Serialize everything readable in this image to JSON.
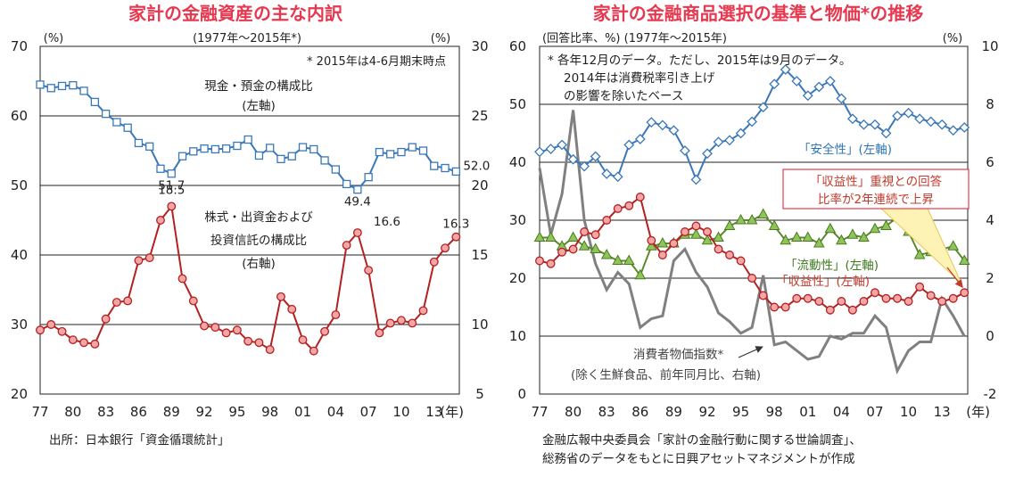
{
  "chart_data": [
    {
      "type": "line",
      "title": "家計の金融資産の主な内訳",
      "subtitle": "(1977年～2015年*)",
      "left_unit": "(%)",
      "right_unit": "(%)",
      "note": "* 2015年は4-6月期末時点",
      "x_unit": "(年)",
      "x_ticks": [
        "77",
        "80",
        "83",
        "86",
        "89",
        "92",
        "95",
        "98",
        "01",
        "04",
        "07",
        "10",
        "13"
      ],
      "y_left": {
        "min": 20,
        "max": 70,
        "ticks": [
          "20",
          "30",
          "40",
          "50",
          "60",
          "70"
        ]
      },
      "y_right": {
        "min": 5,
        "max": 30,
        "ticks": [
          "5",
          "10",
          "15",
          "20",
          "25",
          "30"
        ]
      },
      "x_range": [
        1977,
        2015.3
      ],
      "series": [
        {
          "name": "現金・預金の構成比",
          "axis_label": "(左軸)",
          "axis": "left",
          "color": "#3b78b8",
          "marker": "square",
          "x": [
            1977,
            1978,
            1979,
            1980,
            1981,
            1982,
            1983,
            1984,
            1985,
            1986,
            1987,
            1988,
            1989,
            1990,
            1991,
            1992,
            1993,
            1994,
            1995,
            1996,
            1997,
            1998,
            1999,
            2000,
            2001,
            2002,
            2003,
            2004,
            2005,
            2006,
            2007,
            2008,
            2009,
            2010,
            2011,
            2012,
            2013,
            2014,
            2015
          ],
          "values": [
            64.5,
            64.0,
            64.3,
            64.4,
            63.6,
            62.0,
            60.3,
            59.1,
            58.3,
            56.1,
            55.6,
            52.4,
            51.7,
            54.2,
            54.9,
            55.3,
            55.2,
            55.3,
            55.7,
            56.6,
            54.3,
            55.4,
            53.8,
            54.2,
            55.5,
            55.2,
            53.6,
            52.3,
            50.2,
            49.4,
            51.2,
            54.8,
            54.5,
            54.8,
            55.5,
            55.0,
            52.8,
            52.5,
            52.0
          ]
        },
        {
          "name": "株式・出資金および投資信託の構成比",
          "axis_label": "(右軸)",
          "axis": "right",
          "color": "#b32121",
          "marker": "circle",
          "x": [
            1977,
            1978,
            1979,
            1980,
            1981,
            1982,
            1983,
            1984,
            1985,
            1986,
            1987,
            1988,
            1989,
            1990,
            1991,
            1992,
            1993,
            1994,
            1995,
            1996,
            1997,
            1998,
            1999,
            2000,
            2001,
            2002,
            2003,
            2004,
            2005,
            2006,
            2007,
            2008,
            2009,
            2010,
            2011,
            2012,
            2013,
            2014,
            2015
          ],
          "values": [
            9.6,
            10.0,
            9.5,
            8.9,
            8.7,
            8.6,
            10.4,
            11.6,
            11.7,
            14.6,
            14.8,
            17.5,
            18.5,
            13.3,
            11.7,
            9.9,
            9.8,
            9.4,
            9.6,
            8.8,
            8.7,
            8.2,
            12.0,
            11.1,
            8.9,
            8.1,
            9.5,
            10.7,
            15.7,
            16.6,
            13.9,
            9.4,
            10.1,
            10.3,
            10.1,
            11.0,
            14.5,
            15.5,
            16.3
          ]
        }
      ],
      "labels": [
        {
          "text": "51.7",
          "x": 1989,
          "series": 0
        },
        {
          "text": "49.4",
          "x": 2006,
          "series": 0
        },
        {
          "text": "52.0",
          "x": 2015,
          "series": 0
        },
        {
          "text": "18.5",
          "x": 1989,
          "series": 1
        },
        {
          "text": "16.6",
          "x": 2006,
          "series": 1
        },
        {
          "text": "16.3",
          "x": 2015,
          "series": 1
        }
      ],
      "source": "出所：日本銀行「資金循環統計」"
    },
    {
      "type": "line",
      "title": "家計の金融商品選択の基準と物価*の推移",
      "subtitle": "(回答比率、%) (1977年～2015年)",
      "right_unit": "(%)",
      "note_lines": [
        "* 各年12月のデータ。ただし、2015年は9月のデータ。",
        "2014年は消費税率引き上げ",
        "の影響を除いたベース"
      ],
      "x_unit": "(年)",
      "x_ticks": [
        "77",
        "80",
        "83",
        "86",
        "89",
        "92",
        "95",
        "98",
        "01",
        "04",
        "07",
        "10",
        "13"
      ],
      "y_left": {
        "min": 0,
        "max": 60,
        "ticks": [
          "0",
          "10",
          "20",
          "30",
          "40",
          "50",
          "60"
        ]
      },
      "y_right": {
        "min": -2,
        "max": 10,
        "ticks": [
          "-2",
          "0",
          "2",
          "4",
          "6",
          "8",
          "10"
        ]
      },
      "x_range": [
        1977,
        2015.3
      ],
      "callout_lines": [
        "「収益性」重視との回答",
        "比率が2年連続で上昇"
      ],
      "series": [
        {
          "name": "「安全性」(左軸)",
          "axis": "left",
          "color": "#3b78b8",
          "marker": "diamond",
          "x": [
            1977,
            1978,
            1979,
            1980,
            1981,
            1982,
            1983,
            1984,
            1985,
            1986,
            1987,
            1988,
            1989,
            1990,
            1991,
            1992,
            1993,
            1994,
            1995,
            1996,
            1997,
            1998,
            1999,
            2000,
            2001,
            2002,
            2003,
            2004,
            2005,
            2006,
            2007,
            2008,
            2009,
            2010,
            2011,
            2012,
            2013,
            2014,
            2015
          ],
          "values": [
            41.8,
            42.3,
            43.0,
            40.5,
            39.3,
            41.0,
            38.0,
            37.5,
            43.0,
            44.0,
            46.9,
            46.4,
            45.5,
            42.0,
            37.0,
            41.5,
            43.5,
            43.8,
            45.0,
            47.0,
            49.5,
            53.5,
            56.0,
            54.0,
            51.5,
            53.0,
            54.0,
            51.0,
            47.5,
            46.5,
            46.5,
            45.0,
            48.0,
            48.5,
            47.5,
            47.0,
            46.5,
            45.5,
            46.0
          ]
        },
        {
          "name": "「流動性」(左軸)",
          "axis": "left",
          "color": "#5a8a2a",
          "marker": "triangle",
          "x": [
            1977,
            1978,
            1979,
            1980,
            1981,
            1982,
            1983,
            1984,
            1985,
            1986,
            1987,
            1988,
            1989,
            1990,
            1991,
            1992,
            1993,
            1994,
            1995,
            1996,
            1997,
            1998,
            1999,
            2000,
            2001,
            2002,
            2003,
            2004,
            2005,
            2006,
            2007,
            2008,
            2009,
            2010,
            2011,
            2012,
            2013,
            2014,
            2015
          ],
          "values": [
            27.0,
            27.0,
            25.5,
            27.0,
            25.5,
            25.0,
            24.0,
            23.0,
            23.0,
            20.5,
            25.5,
            26.0,
            26.0,
            27.5,
            27.5,
            26.5,
            27.0,
            29.0,
            30.0,
            30.0,
            31.0,
            29.0,
            26.5,
            27.0,
            27.0,
            26.0,
            28.5,
            26.5,
            27.5,
            27.0,
            28.5,
            29.0,
            30.5,
            28.0,
            24.0,
            24.5,
            25.0,
            25.5,
            23.0
          ]
        },
        {
          "name": "「収益性」(左軸)",
          "axis": "left",
          "color": "#b32121",
          "marker": "circle",
          "x": [
            1977,
            1978,
            1979,
            1980,
            1981,
            1982,
            1983,
            1984,
            1985,
            1986,
            1987,
            1988,
            1989,
            1990,
            1991,
            1992,
            1993,
            1994,
            1995,
            1996,
            1997,
            1998,
            1999,
            2000,
            2001,
            2002,
            2003,
            2004,
            2005,
            2006,
            2007,
            2008,
            2009,
            2010,
            2011,
            2012,
            2013,
            2014,
            2015
          ],
          "values": [
            23.0,
            22.5,
            24.5,
            25.0,
            28.0,
            27.5,
            30.0,
            32.0,
            32.5,
            34.0,
            26.5,
            24.0,
            26.0,
            28.0,
            29.0,
            28.0,
            25.0,
            24.0,
            23.0,
            20.0,
            17.0,
            15.0,
            15.0,
            16.5,
            16.5,
            16.0,
            14.5,
            16.0,
            14.5,
            16.0,
            17.5,
            16.5,
            16.5,
            16.0,
            18.5,
            17.0,
            16.0,
            16.5,
            17.5
          ]
        },
        {
          "name": "消費者物価指数*",
          "axis_label": "(除く生鮮食品、前年同月比、右軸)",
          "axis": "right",
          "color": "#808080",
          "marker": "none",
          "x": [
            1977,
            1978,
            1979,
            1980,
            1981,
            1982,
            1983,
            1984,
            1985,
            1986,
            1987,
            1988,
            1989,
            1990,
            1991,
            1992,
            1993,
            1994,
            1995,
            1996,
            1997,
            1998,
            1999,
            2000,
            2001,
            2002,
            2003,
            2004,
            2005,
            2006,
            2007,
            2008,
            2009,
            2010,
            2011,
            2012,
            2013,
            2014,
            2015
          ],
          "values": [
            5.8,
            3.5,
            4.9,
            7.8,
            4.0,
            2.5,
            1.6,
            2.2,
            1.8,
            0.3,
            0.6,
            0.7,
            2.6,
            3.0,
            2.2,
            1.7,
            0.8,
            0.5,
            0.1,
            0.3,
            2.1,
            -0.3,
            -0.2,
            -0.5,
            -0.8,
            -0.7,
            0.0,
            -0.1,
            0.1,
            0.1,
            0.7,
            0.3,
            -1.2,
            -0.5,
            -0.2,
            -0.2,
            1.3,
            0.7,
            0.0
          ]
        }
      ],
      "source_lines": [
        "金融広報中央委員会「家計の金融行動に関する世論調査」、",
        "総務省のデータをもとに日興アセットマネジメントが作成"
      ]
    }
  ]
}
